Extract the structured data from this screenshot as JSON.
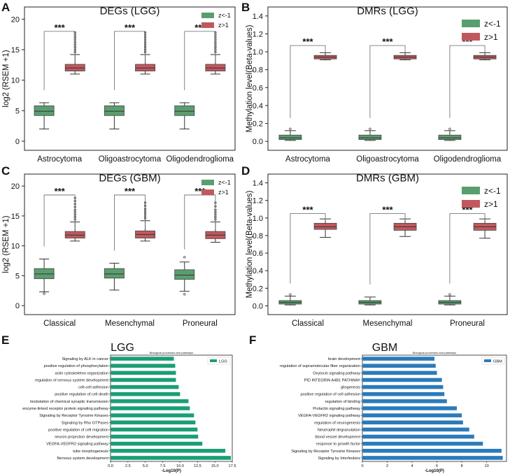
{
  "colors": {
    "green": "#5a9e6f",
    "red": "#c0595e",
    "lgg_bar": "#1b9e77",
    "gbm_bar": "#2b7bba",
    "axis": "#222222"
  },
  "chart_data": [
    {
      "panel": "A",
      "type": "box",
      "title": "DEGs (LGG)",
      "ylabel": "log2 (RSEM +1)",
      "ylim": [
        -1.5,
        22
      ],
      "yticks": [
        0,
        5,
        10,
        15,
        20
      ],
      "categories": [
        "Astrocytoma",
        "Oligoastrocytoma",
        "Oligodendroglioma"
      ],
      "legend": [
        "z<-1",
        "z>1"
      ],
      "legend_position": "top-right",
      "significance": "***",
      "sig_line_y": [
        18.0,
        18.0,
        18.0
      ],
      "series": [
        {
          "name": "z<-1",
          "boxes": [
            {
              "whislo": 2.0,
              "q1": 4.2,
              "med": 4.9,
              "q3": 5.8,
              "whishi": 6.3,
              "fliers": []
            },
            {
              "whislo": 2.0,
              "q1": 4.2,
              "med": 4.9,
              "q3": 5.8,
              "whishi": 6.3,
              "fliers": []
            },
            {
              "whislo": 2.0,
              "q1": 4.2,
              "med": 4.9,
              "q3": 5.8,
              "whishi": 6.3,
              "fliers": []
            }
          ]
        },
        {
          "name": "z>1",
          "boxes": [
            {
              "whislo": 11.0,
              "q1": 11.5,
              "med": 12.0,
              "q3": 12.6,
              "whishi": 14.2,
              "fliers": [
                14.6,
                15.0,
                15.4,
                15.8,
                16.2,
                16.6,
                17.0,
                17.4,
                17.8
              ]
            },
            {
              "whislo": 11.0,
              "q1": 11.5,
              "med": 12.0,
              "q3": 12.6,
              "whishi": 14.2,
              "fliers": [
                14.6,
                15.0,
                15.4,
                15.8,
                16.2,
                16.6,
                17.0,
                17.4,
                17.8
              ]
            },
            {
              "whislo": 11.0,
              "q1": 11.5,
              "med": 12.0,
              "q3": 12.6,
              "whishi": 14.2,
              "fliers": [
                14.6,
                15.0,
                15.4,
                15.8,
                16.2,
                16.6,
                17.0,
                17.4,
                17.8
              ]
            }
          ]
        }
      ]
    },
    {
      "panel": "B",
      "type": "box",
      "title": "DMRs (LGG)",
      "ylabel": "Methylation level(Beta-values)",
      "ylim": [
        -0.1,
        1.5
      ],
      "yticks": [
        "0.0",
        "0.2",
        "0.4",
        "0.6",
        "0.8",
        "1.0",
        "1.2",
        "1.4"
      ],
      "categories": [
        "Astrocytoma",
        "Oligoastrocytoma",
        "Oligodendroglioma"
      ],
      "legend": [
        "z<-1",
        "z>1"
      ],
      "legend_position": "top-right",
      "significance": "***",
      "sig_line_y": [
        1.07,
        1.07,
        1.07
      ],
      "series": [
        {
          "name": "z<-1",
          "boxes": [
            {
              "whislo": 0.01,
              "q1": 0.02,
              "med": 0.04,
              "q3": 0.07,
              "whishi": 0.12,
              "fliers": [
                0.14
              ]
            },
            {
              "whislo": 0.01,
              "q1": 0.02,
              "med": 0.04,
              "q3": 0.07,
              "whishi": 0.12,
              "fliers": [
                0.14
              ]
            },
            {
              "whislo": 0.01,
              "q1": 0.02,
              "med": 0.04,
              "q3": 0.07,
              "whishi": 0.12,
              "fliers": [
                0.14
              ]
            }
          ]
        },
        {
          "name": "z>1",
          "boxes": [
            {
              "whislo": 0.91,
              "q1": 0.92,
              "med": 0.94,
              "q3": 0.96,
              "whishi": 0.99,
              "fliers": []
            },
            {
              "whislo": 0.91,
              "q1": 0.92,
              "med": 0.94,
              "q3": 0.96,
              "whishi": 0.99,
              "fliers": []
            },
            {
              "whislo": 0.91,
              "q1": 0.92,
              "med": 0.94,
              "q3": 0.96,
              "whishi": 0.99,
              "fliers": []
            }
          ]
        }
      ]
    },
    {
      "panel": "C",
      "type": "box",
      "title": "DEGs (GBM)",
      "ylabel": "log2 (RSEM +1)",
      "ylim": [
        -1.5,
        22
      ],
      "yticks": [
        0,
        5,
        10,
        15,
        20
      ],
      "categories": [
        "Classical",
        "Mesenchymal",
        "Proneural"
      ],
      "legend": [
        "z<-1",
        "z>1"
      ],
      "legend_position": "top-right",
      "significance": "***",
      "sig_line_y": [
        18.5,
        18.5,
        18.5
      ],
      "series": [
        {
          "name": "z<-1",
          "boxes": [
            {
              "whislo": 2.3,
              "q1": 4.5,
              "med": 5.3,
              "q3": 6.2,
              "whishi": 7.8,
              "fliers": [
                2.0
              ]
            },
            {
              "whislo": 2.6,
              "q1": 4.6,
              "med": 5.3,
              "q3": 6.2,
              "whishi": 7.1,
              "fliers": []
            },
            {
              "whislo": 2.4,
              "q1": 4.4,
              "med": 5.1,
              "q3": 6.0,
              "whishi": 7.3,
              "fliers": [
                1.9,
                8.1
              ]
            }
          ]
        },
        {
          "name": "z>1",
          "boxes": [
            {
              "whislo": 10.8,
              "q1": 11.3,
              "med": 11.8,
              "q3": 12.4,
              "whishi": 14.0,
              "fliers": [
                14.4,
                14.8,
                15.2,
                15.6,
                16.0,
                16.5,
                17.0,
                17.5,
                18.0
              ]
            },
            {
              "whislo": 10.8,
              "q1": 11.3,
              "med": 11.9,
              "q3": 12.5,
              "whishi": 14.2,
              "fliers": [
                14.6,
                15.0,
                15.4,
                15.8,
                16.2,
                16.7,
                17.2
              ]
            },
            {
              "whislo": 10.6,
              "q1": 11.2,
              "med": 11.8,
              "q3": 12.4,
              "whishi": 14.0,
              "fliers": [
                14.4,
                14.8,
                15.2,
                15.6,
                16.0,
                16.6,
                17.2
              ]
            }
          ]
        }
      ]
    },
    {
      "panel": "D",
      "type": "box",
      "title": "DMRs (GBM)",
      "ylabel": "Methylation level(Beta-values)",
      "ylim": [
        -0.1,
        1.5
      ],
      "yticks": [
        "0.0",
        "0.2",
        "0.4",
        "0.6",
        "0.8",
        "1.0",
        "1.2",
        "1.4"
      ],
      "categories": [
        "Classical",
        "Mesenchymal",
        "Proneural"
      ],
      "legend": [
        "z<-1",
        "z>1"
      ],
      "legend_position": "top-right",
      "significance": "***",
      "sig_line_y": [
        1.05,
        1.05,
        1.05
      ],
      "series": [
        {
          "name": "z<-1",
          "boxes": [
            {
              "whislo": 0.01,
              "q1": 0.02,
              "med": 0.04,
              "q3": 0.06,
              "whishi": 0.11,
              "fliers": [
                0.13
              ]
            },
            {
              "whislo": 0.01,
              "q1": 0.02,
              "med": 0.04,
              "q3": 0.06,
              "whishi": 0.1,
              "fliers": []
            },
            {
              "whislo": 0.01,
              "q1": 0.02,
              "med": 0.04,
              "q3": 0.06,
              "whishi": 0.11,
              "fliers": [
                0.13
              ]
            }
          ]
        },
        {
          "name": "z>1",
          "boxes": [
            {
              "whislo": 0.78,
              "q1": 0.87,
              "med": 0.9,
              "q3": 0.94,
              "whishi": 0.99,
              "fliers": []
            },
            {
              "whislo": 0.79,
              "q1": 0.86,
              "med": 0.9,
              "q3": 0.94,
              "whishi": 0.99,
              "fliers": []
            },
            {
              "whislo": 0.77,
              "q1": 0.86,
              "med": 0.9,
              "q3": 0.94,
              "whishi": 0.99,
              "fliers": []
            }
          ]
        }
      ]
    },
    {
      "panel": "E",
      "type": "bar",
      "orientation": "horizontal",
      "title": "LGG",
      "subtitle": "Biological processes and pathways",
      "xlabel": "-Log10(P)",
      "xlim": [
        0,
        17.5
      ],
      "xticks": [
        "0.0",
        "2.5",
        "5.0",
        "7.5",
        "10.0",
        "12.5",
        "15.0",
        "17.5"
      ],
      "legend": "LGG",
      "legend_position": "top-right",
      "categories": [
        "Signaling by ALK in cancer",
        "positive regulation of phosphorylation",
        "actin cytoskeleton organization",
        "regulation of nervous system development",
        "cell-cell adhesion",
        "positive regulation of cell death",
        "modulation of chemical synaptic transmission",
        "enzyme-linked receptor protein signaling pathway",
        "Signaling by Receptor Tyrosine Kinases",
        "Signaling by Rho GTPases",
        "positive regulation of cell migration",
        "neuron projection development",
        "VEGFA-VEGFR2 signaling pathway",
        "tube morphogenesis",
        "Nervous system development"
      ],
      "values": [
        9.1,
        9.3,
        9.4,
        9.4,
        9.8,
        10.0,
        11.2,
        11.4,
        12.0,
        12.2,
        12.5,
        12.6,
        13.2,
        16.5,
        17.3
      ]
    },
    {
      "panel": "F",
      "type": "bar",
      "orientation": "horizontal",
      "title": "GBM",
      "subtitle": "Biological processes and pathways",
      "xlabel": "-Log10(P)",
      "xlim": [
        0,
        11.6
      ],
      "xticks": [
        "0",
        "2",
        "4",
        "6",
        "8",
        "10"
      ],
      "legend": "GBM",
      "legend_position": "top-right",
      "categories": [
        "brain development",
        "regulation of supramolecular fiber organization",
        "Oxytocin signaling pathway",
        "PID INTEGRIN A4B1 PATHWAY",
        "gliogenesis",
        "positive regulation of cell adhesion",
        "regulation of binding",
        "Prolactin signaling pathway",
        "VEGFA-VEGFR2 signaling pathway",
        "regulation of neurogenesis",
        "Neutrophil degranulation",
        "blood vessel development",
        "response to growth factor",
        "Signaling by Receptor Tyrosine Kinases",
        "Signaling by Interleukins"
      ],
      "values": [
        5.8,
        5.9,
        6.0,
        6.4,
        6.5,
        6.6,
        6.8,
        7.6,
        8.0,
        8.1,
        8.6,
        9.0,
        9.7,
        11.2,
        11.3
      ]
    }
  ]
}
